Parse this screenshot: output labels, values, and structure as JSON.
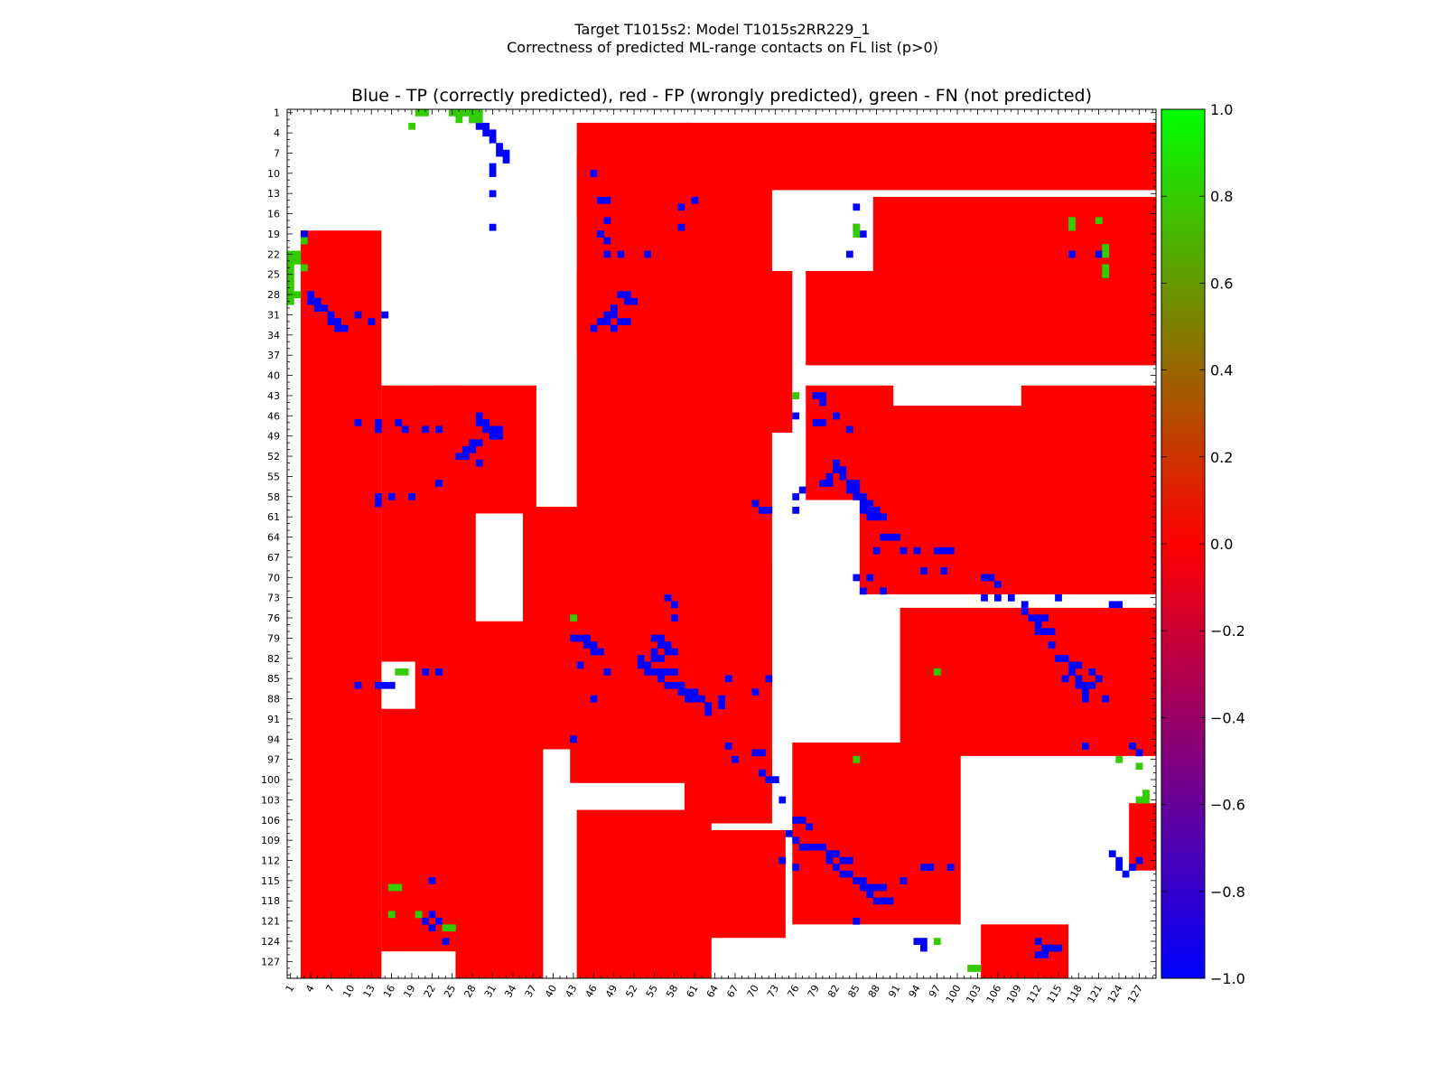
{
  "figure": {
    "title_line_1": "Target T1015s2: Model T1015s2RR229_1",
    "title_line_2": "Correctness of predicted ML-range contacts on FL list (p>0)"
  },
  "chart_data": {
    "type": "heatmap",
    "title": "Blue - TP (correctly predicted), red - FP (wrongly predicted), green - FN (not predicted)",
    "xlabel": "",
    "ylabel": "",
    "residue_range": [
      1,
      129
    ],
    "x_ticks": [
      1,
      4,
      7,
      10,
      13,
      16,
      19,
      22,
      25,
      28,
      31,
      34,
      37,
      40,
      43,
      46,
      49,
      52,
      55,
      58,
      61,
      64,
      67,
      70,
      73,
      76,
      79,
      82,
      85,
      88,
      91,
      94,
      97,
      100,
      103,
      106,
      109,
      112,
      115,
      118,
      121,
      124,
      127
    ],
    "y_ticks": [
      1,
      4,
      7,
      10,
      13,
      16,
      19,
      22,
      25,
      28,
      31,
      34,
      37,
      40,
      43,
      46,
      49,
      52,
      55,
      58,
      61,
      64,
      67,
      70,
      73,
      76,
      79,
      82,
      85,
      88,
      91,
      94,
      97,
      100,
      103,
      106,
      109,
      112,
      115,
      118,
      121,
      124,
      127
    ],
    "colorbar": {
      "min": -1.0,
      "max": 1.0,
      "ticks": [
        "1.0",
        "0.8",
        "0.6",
        "0.4",
        "0.2",
        "0.0",
        "−0.2",
        "−0.4",
        "−0.6",
        "−0.8",
        "−1.0"
      ],
      "colors": {
        "high": "#00ff00",
        "mid": "#ff0000",
        "low": "#0000ff"
      }
    },
    "categories": [
      {
        "name": "TP",
        "value": -1.0,
        "color": "#0000ff"
      },
      {
        "name": "FP",
        "value": 0.0,
        "color": "#ff0000"
      },
      {
        "name": "FN",
        "value": 1.0,
        "color": "#33cc00"
      }
    ],
    "fp_regions": [
      [
        44,
        8,
        72,
        100
      ],
      [
        44,
        3,
        60,
        16
      ],
      [
        60,
        3,
        129,
        12
      ],
      [
        88,
        14,
        129,
        24
      ],
      [
        44,
        25,
        72,
        36
      ],
      [
        60,
        25,
        75,
        48
      ],
      [
        78,
        25,
        129,
        38
      ],
      [
        78,
        42,
        90,
        58
      ],
      [
        90,
        45,
        129,
        58
      ],
      [
        110,
        42,
        129,
        70
      ],
      [
        86,
        58,
        129,
        72
      ],
      [
        92,
        75,
        129,
        96
      ],
      [
        76,
        95,
        100,
        121
      ],
      [
        104,
        122,
        116,
        129
      ],
      [
        126,
        104,
        129,
        113
      ],
      [
        3,
        19,
        14,
        129
      ],
      [
        15,
        42,
        26,
        82
      ],
      [
        23,
        42,
        37,
        60
      ],
      [
        20,
        60,
        28,
        90
      ],
      [
        26,
        77,
        38,
        129
      ],
      [
        43,
        75,
        62,
        100
      ],
      [
        58,
        68,
        72,
        86
      ],
      [
        15,
        90,
        26,
        125
      ],
      [
        36,
        60,
        50,
        95
      ],
      [
        60,
        97,
        72,
        106
      ],
      [
        44,
        105,
        63,
        129
      ],
      [
        60,
        108,
        74,
        123
      ]
    ],
    "tp_cells": [
      [
        28,
        2
      ],
      [
        29,
        3
      ],
      [
        30,
        3
      ],
      [
        30,
        4
      ],
      [
        31,
        4
      ],
      [
        31,
        5
      ],
      [
        32,
        6
      ],
      [
        32,
        7
      ],
      [
        33,
        7
      ],
      [
        33,
        8
      ],
      [
        31,
        9
      ],
      [
        31,
        10
      ],
      [
        31,
        13
      ],
      [
        31,
        18
      ],
      [
        46,
        10
      ],
      [
        47,
        14
      ],
      [
        48,
        14
      ],
      [
        48,
        17
      ],
      [
        47,
        19
      ],
      [
        48,
        20
      ],
      [
        59,
        15
      ],
      [
        59,
        18
      ],
      [
        61,
        14
      ],
      [
        48,
        22
      ],
      [
        50,
        22
      ],
      [
        54,
        22
      ],
      [
        85,
        15
      ],
      [
        85,
        18
      ],
      [
        86,
        19
      ],
      [
        84,
        22
      ],
      [
        117,
        22
      ],
      [
        121,
        22
      ],
      [
        122,
        22
      ],
      [
        122,
        25
      ],
      [
        50,
        28
      ],
      [
        51,
        28
      ],
      [
        51,
        29
      ],
      [
        52,
        29
      ],
      [
        49,
        30
      ],
      [
        48,
        31
      ],
      [
        49,
        31
      ],
      [
        47,
        32
      ],
      [
        48,
        32
      ],
      [
        50,
        32
      ],
      [
        51,
        32
      ],
      [
        46,
        33
      ],
      [
        49,
        33
      ],
      [
        3,
        19
      ],
      [
        4,
        28
      ],
      [
        4,
        29
      ],
      [
        5,
        29
      ],
      [
        5,
        30
      ],
      [
        6,
        30
      ],
      [
        7,
        31
      ],
      [
        7,
        32
      ],
      [
        8,
        32
      ],
      [
        8,
        33
      ],
      [
        9,
        33
      ],
      [
        11,
        31
      ],
      [
        13,
        32
      ],
      [
        15,
        31
      ],
      [
        29,
        46
      ],
      [
        29,
        47
      ],
      [
        30,
        47
      ],
      [
        30,
        48
      ],
      [
        31,
        48
      ],
      [
        31,
        49
      ],
      [
        32,
        48
      ],
      [
        32,
        49
      ],
      [
        29,
        50
      ],
      [
        28,
        50
      ],
      [
        28,
        51
      ],
      [
        27,
        51
      ],
      [
        27,
        52
      ],
      [
        26,
        52
      ],
      [
        29,
        53
      ],
      [
        11,
        47
      ],
      [
        14,
        47
      ],
      [
        14,
        48
      ],
      [
        17,
        47
      ],
      [
        18,
        48
      ],
      [
        21,
        48
      ],
      [
        14,
        58
      ],
      [
        16,
        58
      ],
      [
        19,
        58
      ],
      [
        14,
        59
      ],
      [
        23,
        48
      ],
      [
        23,
        56
      ],
      [
        79,
        43
      ],
      [
        80,
        43
      ],
      [
        80,
        44
      ],
      [
        76,
        46
      ],
      [
        79,
        47
      ],
      [
        80,
        47
      ],
      [
        82,
        46
      ],
      [
        84,
        48
      ],
      [
        82,
        53
      ],
      [
        82,
        54
      ],
      [
        83,
        54
      ],
      [
        83,
        55
      ],
      [
        81,
        55
      ],
      [
        80,
        56
      ],
      [
        81,
        56
      ],
      [
        84,
        56
      ],
      [
        85,
        56
      ],
      [
        84,
        57
      ],
      [
        85,
        57
      ],
      [
        85,
        58
      ],
      [
        86,
        58
      ],
      [
        86,
        59
      ],
      [
        87,
        59
      ],
      [
        86,
        60
      ],
      [
        87,
        60
      ],
      [
        88,
        60
      ],
      [
        88,
        61
      ],
      [
        87,
        61
      ],
      [
        89,
        61
      ],
      [
        76,
        58
      ],
      [
        77,
        57
      ],
      [
        71,
        60
      ],
      [
        72,
        60
      ],
      [
        70,
        59
      ],
      [
        76,
        60
      ],
      [
        89,
        64
      ],
      [
        90,
        64
      ],
      [
        91,
        64
      ],
      [
        88,
        66
      ],
      [
        92,
        66
      ],
      [
        94,
        66
      ],
      [
        97,
        66
      ],
      [
        98,
        66
      ],
      [
        99,
        66
      ],
      [
        95,
        69
      ],
      [
        98,
        69
      ],
      [
        87,
        70
      ],
      [
        85,
        70
      ],
      [
        86,
        72
      ],
      [
        89,
        72
      ],
      [
        104,
        70
      ],
      [
        105,
        70
      ],
      [
        106,
        71
      ],
      [
        104,
        73
      ],
      [
        106,
        73
      ],
      [
        108,
        73
      ],
      [
        110,
        75
      ],
      [
        111,
        76
      ],
      [
        113,
        76
      ],
      [
        112,
        77
      ],
      [
        112,
        78
      ],
      [
        113,
        78
      ],
      [
        114,
        78
      ],
      [
        114,
        80
      ],
      [
        115,
        82
      ],
      [
        116,
        82
      ],
      [
        117,
        83
      ],
      [
        117,
        84
      ],
      [
        118,
        83
      ],
      [
        118,
        85
      ],
      [
        118,
        86
      ],
      [
        119,
        86
      ],
      [
        120,
        86
      ],
      [
        119,
        87
      ],
      [
        117,
        84
      ],
      [
        120,
        84
      ],
      [
        116,
        85
      ],
      [
        121,
        85
      ],
      [
        123,
        74
      ],
      [
        124,
        74
      ],
      [
        115,
        73
      ],
      [
        112,
        76
      ],
      [
        110,
        74
      ],
      [
        119,
        88
      ],
      [
        122,
        88
      ],
      [
        119,
        95
      ],
      [
        126,
        95
      ],
      [
        127,
        96
      ],
      [
        57,
        73
      ],
      [
        58,
        74
      ],
      [
        58,
        76
      ],
      [
        55,
        79
      ],
      [
        56,
        79
      ],
      [
        56,
        80
      ],
      [
        57,
        80
      ],
      [
        57,
        81
      ],
      [
        58,
        81
      ],
      [
        55,
        81
      ],
      [
        55,
        82
      ],
      [
        56,
        82
      ],
      [
        53,
        82
      ],
      [
        53,
        83
      ],
      [
        54,
        83
      ],
      [
        54,
        84
      ],
      [
        55,
        84
      ],
      [
        56,
        84
      ],
      [
        57,
        84
      ],
      [
        58,
        84
      ],
      [
        56,
        85
      ],
      [
        57,
        86
      ],
      [
        58,
        86
      ],
      [
        59,
        86
      ],
      [
        59,
        87
      ],
      [
        60,
        87
      ],
      [
        61,
        87
      ],
      [
        61,
        88
      ],
      [
        60,
        88
      ],
      [
        62,
        88
      ],
      [
        63,
        89
      ],
      [
        63,
        90
      ],
      [
        65,
        88
      ],
      [
        65,
        89
      ],
      [
        43,
        79
      ],
      [
        44,
        79
      ],
      [
        45,
        79
      ],
      [
        45,
        80
      ],
      [
        46,
        80
      ],
      [
        46,
        81
      ],
      [
        47,
        81
      ],
      [
        44,
        83
      ],
      [
        48,
        84
      ],
      [
        66,
        85
      ],
      [
        66,
        95
      ],
      [
        67,
        97
      ],
      [
        70,
        96
      ],
      [
        71,
        96
      ],
      [
        71,
        99
      ],
      [
        72,
        100
      ],
      [
        73,
        100
      ],
      [
        70,
        87
      ],
      [
        72,
        85
      ],
      [
        74,
        103
      ],
      [
        76,
        106
      ],
      [
        77,
        106
      ],
      [
        78,
        107
      ],
      [
        75,
        108
      ],
      [
        76,
        109
      ],
      [
        77,
        110
      ],
      [
        78,
        110
      ],
      [
        79,
        110
      ],
      [
        80,
        110
      ],
      [
        81,
        111
      ],
      [
        82,
        111
      ],
      [
        83,
        112
      ],
      [
        84,
        112
      ],
      [
        81,
        112
      ],
      [
        82,
        113
      ],
      [
        83,
        114
      ],
      [
        84,
        114
      ],
      [
        85,
        115
      ],
      [
        86,
        115
      ],
      [
        86,
        116
      ],
      [
        87,
        116
      ],
      [
        88,
        116
      ],
      [
        89,
        116
      ],
      [
        87,
        117
      ],
      [
        88,
        118
      ],
      [
        89,
        118
      ],
      [
        90,
        118
      ],
      [
        85,
        121
      ],
      [
        87,
        117
      ],
      [
        74,
        112
      ],
      [
        76,
        113
      ],
      [
        95,
        113
      ],
      [
        96,
        113
      ],
      [
        99,
        113
      ],
      [
        92,
        115
      ],
      [
        22,
        115
      ],
      [
        22,
        120
      ],
      [
        21,
        121
      ],
      [
        22,
        122
      ],
      [
        23,
        121
      ],
      [
        24,
        124
      ],
      [
        123,
        111
      ],
      [
        124,
        112
      ],
      [
        124,
        113
      ],
      [
        125,
        114
      ],
      [
        126,
        113
      ],
      [
        127,
        112
      ],
      [
        112,
        124
      ],
      [
        113,
        125
      ],
      [
        114,
        125
      ],
      [
        112,
        126
      ],
      [
        113,
        126
      ],
      [
        115,
        125
      ],
      [
        94,
        124
      ],
      [
        95,
        124
      ],
      [
        95,
        125
      ],
      [
        11,
        86
      ],
      [
        14,
        86
      ],
      [
        15,
        86
      ],
      [
        16,
        86
      ],
      [
        21,
        84
      ],
      [
        23,
        84
      ],
      [
        43,
        94
      ],
      [
        46,
        88
      ]
    ],
    "fn_cells": [
      [
        20,
        1
      ],
      [
        21,
        1
      ],
      [
        25,
        1
      ],
      [
        26,
        1
      ],
      [
        27,
        1
      ],
      [
        28,
        1
      ],
      [
        29,
        1
      ],
      [
        26,
        2
      ],
      [
        28,
        2
      ],
      [
        29,
        2
      ],
      [
        19,
        3
      ],
      [
        1,
        22
      ],
      [
        1,
        23
      ],
      [
        2,
        22
      ],
      [
        2,
        23
      ],
      [
        3,
        20
      ],
      [
        1,
        24
      ],
      [
        1,
        25
      ],
      [
        1,
        26
      ],
      [
        1,
        27
      ],
      [
        1,
        28
      ],
      [
        2,
        28
      ],
      [
        1,
        29
      ],
      [
        3,
        24
      ],
      [
        85,
        18
      ],
      [
        85,
        19
      ],
      [
        117,
        17
      ],
      [
        117,
        18
      ],
      [
        121,
        17
      ],
      [
        122,
        21
      ],
      [
        122,
        22
      ],
      [
        122,
        24
      ],
      [
        122,
        25
      ],
      [
        76,
        43
      ],
      [
        43,
        76
      ],
      [
        17,
        84
      ],
      [
        18,
        84
      ],
      [
        16,
        116
      ],
      [
        17,
        116
      ],
      [
        16,
        120
      ],
      [
        20,
        120
      ],
      [
        24,
        122
      ],
      [
        25,
        122
      ],
      [
        97,
        84
      ],
      [
        85,
        97
      ],
      [
        97,
        124
      ],
      [
        124,
        97
      ],
      [
        127,
        98
      ],
      [
        128,
        102
      ],
      [
        128,
        103
      ],
      [
        102,
        128
      ],
      [
        103,
        128
      ],
      [
        127,
        103
      ]
    ]
  }
}
